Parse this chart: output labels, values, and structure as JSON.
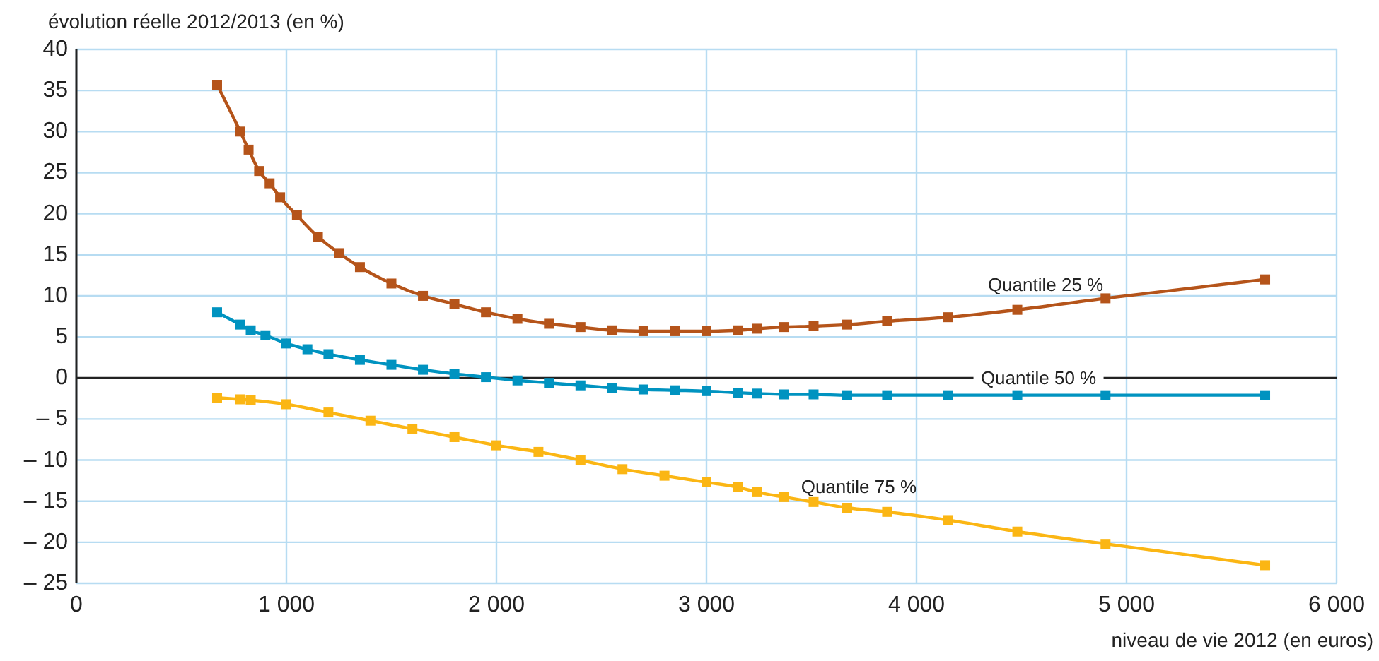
{
  "chart_data": {
    "type": "line",
    "ylabel": "évolution réelle 2012/2013 (en %)",
    "xlabel": "niveau de vie 2012 (en euros)",
    "xlim": [
      0,
      6000
    ],
    "xticks": [
      0,
      {
        "value": 1000,
        "label": "1 000"
      },
      {
        "value": 2000,
        "label": "2 000"
      },
      {
        "value": 3000,
        "label": "3 000"
      },
      {
        "value": 4000,
        "label": "4 000"
      },
      {
        "value": 5000,
        "label": "5 000"
      },
      {
        "value": 6000,
        "label": "6 000"
      }
    ],
    "ylim": [
      -25,
      40
    ],
    "yticks": [
      {
        "value": -25,
        "label": "– 25"
      },
      {
        "value": -20,
        "label": "– 20"
      },
      {
        "value": -15,
        "label": "– 15"
      },
      {
        "value": -10,
        "label": "– 10"
      },
      {
        "value": -5,
        "label": "– 5"
      },
      0,
      5,
      10,
      15,
      20,
      25,
      30,
      35,
      40
    ],
    "grid": true,
    "marker": "square",
    "line_style": "solid",
    "ref_lines": [
      {
        "axis": "y",
        "value": 0,
        "color": "#222222"
      }
    ],
    "series": [
      {
        "name": "Quantile 25 %",
        "color": "#b5541a",
        "x": [
          670,
          780,
          820,
          870,
          920,
          970,
          1050,
          1150,
          1250,
          1350,
          1500,
          1650,
          1800,
          1950,
          2100,
          2250,
          2400,
          2550,
          2700,
          2850,
          3000,
          3150,
          3240,
          3370,
          3510,
          3670,
          3860,
          4150,
          4480,
          4900,
          5660
        ],
        "values": [
          35.7,
          30,
          27.8,
          25.2,
          23.7,
          22,
          19.8,
          17.2,
          15.2,
          13.5,
          11.5,
          10,
          9,
          8,
          7.2,
          6.6,
          6.2,
          5.8,
          5.7,
          5.7,
          5.7,
          5.8,
          6,
          6.2,
          6.3,
          6.5,
          6.9,
          7.4,
          8.3,
          9.7,
          12
        ]
      },
      {
        "name": "Quantile 50 %",
        "color": "#0093c0",
        "x": [
          670,
          780,
          830,
          900,
          1000,
          1100,
          1200,
          1350,
          1500,
          1650,
          1800,
          1950,
          2100,
          2250,
          2400,
          2550,
          2700,
          2850,
          3000,
          3150,
          3240,
          3370,
          3510,
          3670,
          3860,
          4150,
          4480,
          4900,
          5660
        ],
        "values": [
          8,
          6.5,
          5.8,
          5.2,
          4.2,
          3.5,
          2.9,
          2.2,
          1.6,
          1,
          0.5,
          0.1,
          -0.3,
          -0.6,
          -0.9,
          -1.2,
          -1.4,
          -1.5,
          -1.6,
          -1.8,
          -1.9,
          -2,
          -2,
          -2.1,
          -2.1,
          -2.1,
          -2.1,
          -2.1,
          -2.1
        ]
      },
      {
        "name": "Quantile 75 %",
        "color": "#fbb614",
        "x": [
          670,
          780,
          830,
          1000,
          1200,
          1400,
          1600,
          1800,
          2000,
          2200,
          2400,
          2600,
          2800,
          3000,
          3150,
          3240,
          3370,
          3510,
          3670,
          3860,
          4150,
          4480,
          4900,
          5660
        ],
        "values": [
          -2.4,
          -2.6,
          -2.7,
          -3.2,
          -4.2,
          -5.2,
          -6.2,
          -7.2,
          -8.2,
          -9,
          -10,
          -11.1,
          -11.9,
          -12.7,
          -13.3,
          -13.9,
          -14.5,
          -15.1,
          -15.8,
          -16.3,
          -17.3,
          -18.7,
          -20.2,
          -22.8
        ]
      }
    ]
  }
}
